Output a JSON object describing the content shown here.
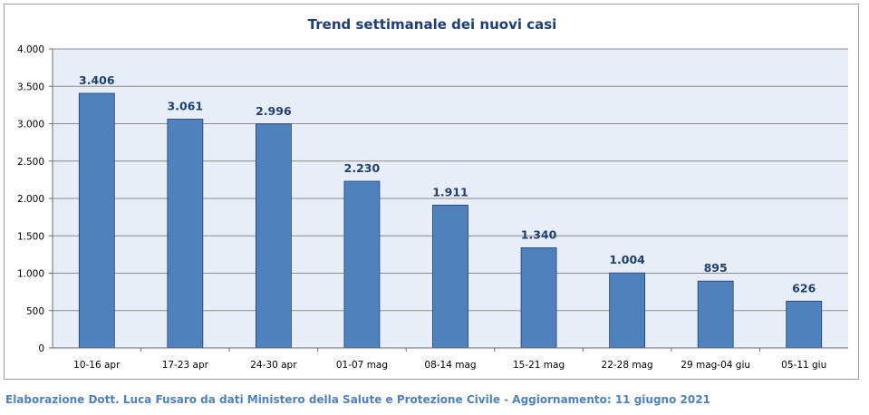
{
  "chart_data": {
    "type": "bar",
    "title": "Trend settimanale dei nuovi casi",
    "categories": [
      "10-16 apr",
      "17-23 apr",
      "24-30 apr",
      "01-07 mag",
      "08-14 mag",
      "15-21 mag",
      "22-28 mag",
      "29 mag-04 giu",
      "05-11 giu"
    ],
    "values": [
      3406,
      3061,
      2996,
      2230,
      1911,
      1340,
      1004,
      895,
      626
    ],
    "value_labels": [
      "3.406",
      "3.061",
      "2.996",
      "2.230",
      "1.911",
      "1.340",
      "1.004",
      "895",
      "626"
    ],
    "y_ticks": [
      0,
      500,
      1000,
      1500,
      2000,
      2500,
      3000,
      3500,
      4000
    ],
    "y_tick_labels": [
      "0",
      "500",
      "1.000",
      "1.500",
      "2.000",
      "2.500",
      "3.000",
      "3.500",
      "4.000"
    ],
    "ylim": [
      0,
      4000
    ],
    "xlabel": "",
    "ylabel": "",
    "grid": true,
    "legend": "none",
    "colors": {
      "bar": "#4f81bd",
      "bar_border": "#1f3f73",
      "plot_background": "#e8eef7",
      "gridline": "#8c8c8c",
      "title": "#1f3f73",
      "value_label": "#1f3f73"
    }
  },
  "footer": {
    "source_text": "Elaborazione Dott. Luca Fusaro da dati Ministero della Salute e Protezione Civile - Aggiornamento: 11 giugno 2021"
  }
}
